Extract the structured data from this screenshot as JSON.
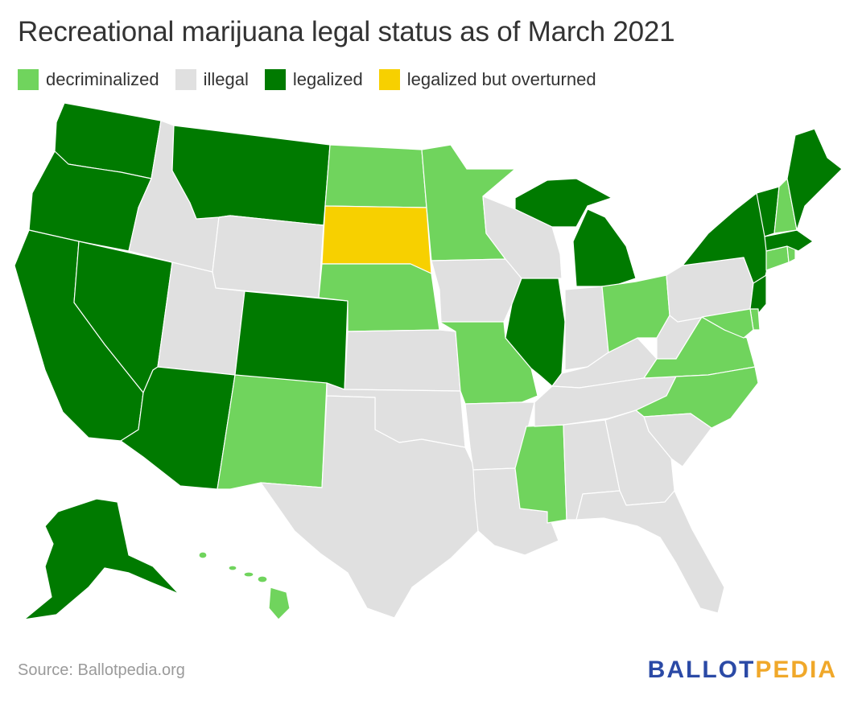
{
  "title": "Recreational marijuana legal status as of March 2021",
  "colors": {
    "decriminalized": "#70d45d",
    "illegal": "#e0e0e0",
    "legalized": "#007a00",
    "legalized but overturned": "#f7d000",
    "logo_primary": "#2b4aa6",
    "logo_accent": "#f0a82a"
  },
  "legend": [
    {
      "status": "decriminalized",
      "label": "decriminalized"
    },
    {
      "status": "illegal",
      "label": "illegal"
    },
    {
      "status": "legalized",
      "label": "legalized"
    },
    {
      "status": "legalized but overturned",
      "label": "legalized but overturned"
    }
  ],
  "source": "Source: Ballotpedia.org",
  "logo": {
    "part1": "BALLOT",
    "part2": "PEDIA"
  },
  "states": {
    "WA": "legalized",
    "OR": "legalized",
    "CA": "legalized",
    "NV": "legalized",
    "ID": "illegal",
    "MT": "legalized",
    "WY": "illegal",
    "UT": "illegal",
    "AZ": "legalized",
    "CO": "legalized",
    "NM": "decriminalized",
    "ND": "decriminalized",
    "SD": "legalized but overturned",
    "NE": "decriminalized",
    "KS": "illegal",
    "OK": "illegal",
    "TX": "illegal",
    "MN": "decriminalized",
    "IA": "illegal",
    "MO": "decriminalized",
    "AR": "illegal",
    "LA": "illegal",
    "WI": "illegal",
    "IL": "legalized",
    "MS": "decriminalized",
    "MI": "legalized",
    "IN": "illegal",
    "KY": "illegal",
    "TN": "illegal",
    "AL": "illegal",
    "OH": "decriminalized",
    "WV": "illegal",
    "VA": "decriminalized",
    "NC": "decriminalized",
    "SC": "illegal",
    "GA": "illegal",
    "FL": "illegal",
    "PA": "illegal",
    "NY": "legalized",
    "NJ": "legalized",
    "DE": "decriminalized",
    "MD": "decriminalized",
    "CT": "decriminalized",
    "RI": "decriminalized",
    "MA": "legalized",
    "VT": "legalized",
    "NH": "decriminalized",
    "ME": "legalized",
    "AK": "legalized",
    "HI": "decriminalized"
  }
}
